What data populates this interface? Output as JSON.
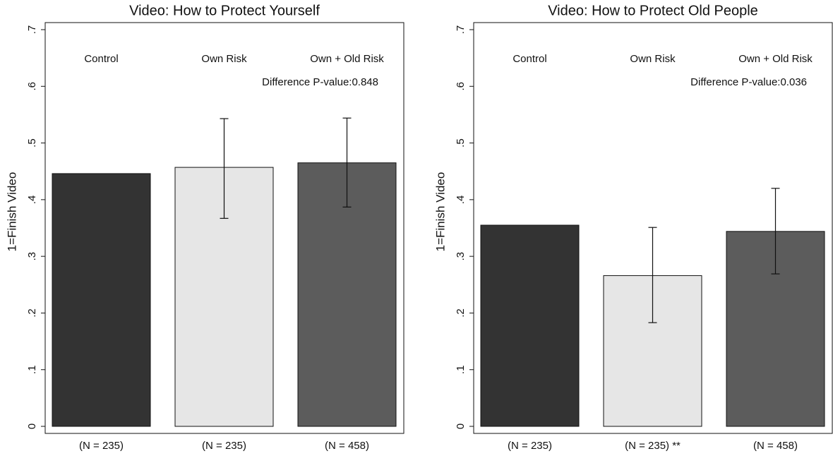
{
  "chart_data": [
    {
      "type": "bar",
      "title": "Video: How to Protect Yourself",
      "ylabel": "1=Finish Video",
      "annotation": "Difference P-value:0.848",
      "categories": [
        "Control",
        "Own Risk",
        "Own + Old Risk"
      ],
      "xticklabels": [
        "(N = 235)",
        "(N = 235)",
        "(N = 458)"
      ],
      "values": [
        0.446,
        0.457,
        0.465
      ],
      "ci_low": [
        null,
        0.367,
        0.387
      ],
      "ci_high": [
        null,
        0.543,
        0.544
      ],
      "colors": [
        "#333333",
        "#e6e6e6",
        "#5c5c5c"
      ],
      "ylim": [
        0,
        0.7
      ],
      "yticks": [
        0,
        {
          "value": 0.1,
          "label": ".1"
        },
        {
          "value": 0.2,
          "label": ".2"
        },
        {
          "value": 0.3,
          "label": ".3"
        },
        {
          "value": 0.4,
          "label": ".4"
        },
        {
          "value": 0.5,
          "label": ".5"
        },
        {
          "value": 0.6,
          "label": ".6"
        },
        {
          "value": 0.7,
          "label": ".7"
        }
      ]
    },
    {
      "type": "bar",
      "title": "Video: How to Protect Old People",
      "ylabel": "1=Finish Video",
      "annotation": "Difference P-value:0.036",
      "categories": [
        "Control",
        "Own Risk",
        "Own + Old Risk"
      ],
      "xticklabels": [
        "(N = 235)",
        "(N = 235) **",
        "(N = 458)"
      ],
      "values": [
        0.355,
        0.266,
        0.344
      ],
      "ci_low": [
        null,
        0.183,
        0.269
      ],
      "ci_high": [
        null,
        0.351,
        0.42
      ],
      "colors": [
        "#333333",
        "#e6e6e6",
        "#5c5c5c"
      ],
      "ylim": [
        0,
        0.7
      ],
      "yticks": [
        0,
        {
          "value": 0.1,
          "label": ".1"
        },
        {
          "value": 0.2,
          "label": ".2"
        },
        {
          "value": 0.3,
          "label": ".3"
        },
        {
          "value": 0.4,
          "label": ".4"
        },
        {
          "value": 0.5,
          "label": ".5"
        },
        {
          "value": 0.6,
          "label": ".6"
        },
        {
          "value": 0.7,
          "label": ".7"
        }
      ]
    }
  ]
}
